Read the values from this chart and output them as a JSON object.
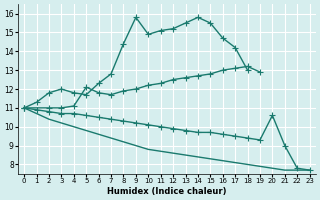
{
  "xlabel": "Humidex (Indice chaleur)",
  "bg_color": "#d6eeee",
  "grid_color": "#ffffff",
  "line_color": "#1a7a6e",
  "ylim": [
    7.5,
    16.5
  ],
  "yticks": [
    8,
    9,
    10,
    11,
    12,
    13,
    14,
    15,
    16
  ],
  "xlim": [
    -0.5,
    23.5
  ],
  "xticks": [
    0,
    1,
    2,
    3,
    4,
    5,
    6,
    7,
    8,
    9,
    10,
    11,
    12,
    13,
    14,
    15,
    16,
    17,
    18,
    19,
    20,
    21,
    22,
    23
  ],
  "line1_x": [
    0,
    1,
    2,
    3,
    4,
    5,
    6,
    7,
    8,
    9,
    10,
    11,
    12,
    13,
    14,
    15,
    16,
    17,
    18
  ],
  "line1_y": [
    11.0,
    11.3,
    11.8,
    12.0,
    11.8,
    11.7,
    12.3,
    12.8,
    14.4,
    15.8,
    14.9,
    15.1,
    15.2,
    15.5,
    15.8,
    15.5,
    14.7,
    14.2,
    13.0
  ],
  "line2_x": [
    0,
    2,
    3,
    4,
    5,
    6,
    7,
    8,
    9,
    10,
    11,
    12,
    13,
    14,
    15,
    16,
    17,
    18,
    19
  ],
  "line2_y": [
    11.0,
    11.0,
    11.0,
    11.1,
    12.1,
    11.8,
    11.7,
    11.9,
    12.0,
    12.2,
    12.3,
    12.5,
    12.6,
    12.7,
    12.8,
    13.0,
    13.1,
    13.2,
    12.9
  ],
  "line3_x": [
    0,
    1,
    2,
    3,
    4,
    5,
    6,
    7,
    8,
    9,
    10,
    11,
    12,
    13,
    14,
    15,
    16,
    17,
    18,
    19,
    20,
    21,
    22,
    23
  ],
  "line3_y": [
    11.0,
    10.9,
    10.8,
    10.7,
    10.7,
    10.6,
    10.5,
    10.4,
    10.3,
    10.2,
    10.1,
    10.0,
    9.9,
    9.8,
    9.7,
    9.7,
    9.6,
    9.5,
    9.4,
    9.3,
    10.6,
    9.0,
    7.8,
    7.7
  ],
  "line4_x": [
    0,
    1,
    2,
    3,
    4,
    5,
    6,
    7,
    8,
    9,
    10,
    11,
    12,
    13,
    14,
    15,
    16,
    17,
    18,
    19,
    20,
    21,
    22,
    23
  ],
  "line4_y": [
    11.0,
    10.7,
    10.4,
    10.2,
    10.0,
    9.8,
    9.6,
    9.4,
    9.2,
    9.0,
    8.8,
    8.7,
    8.6,
    8.5,
    8.4,
    8.3,
    8.2,
    8.1,
    8.0,
    7.9,
    7.8,
    7.7,
    7.7,
    7.7
  ]
}
